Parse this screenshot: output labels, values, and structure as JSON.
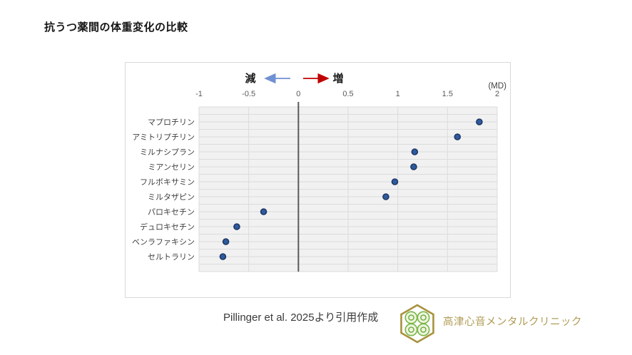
{
  "page": {
    "title": "抗うつ薬間の体重変化の比較",
    "citation": "Pillinger et al. 2025より引用作成",
    "logo_text": "高津心音メンタルクリニック"
  },
  "chart_data": {
    "type": "scatter",
    "orientation": "horizontal-category-dot-plot",
    "title": "抗うつ薬間の体重変化の比較",
    "unit_label": "(MD)",
    "decrease_label": "減",
    "increase_label": "増",
    "categories": [
      "マプロチリン",
      "アミトリプチリン",
      "ミルナシプラン",
      "ミアンセリン",
      "フルボキサミン",
      "ミルタザピン",
      "パロキセチン",
      "デュロキセチン",
      "ベンラファキシン",
      "セルトラリン"
    ],
    "values": [
      1.82,
      1.6,
      1.17,
      1.16,
      0.97,
      0.88,
      -0.35,
      -0.62,
      -0.73,
      -0.76
    ],
    "xlim": [
      -1,
      2
    ],
    "xticks": [
      -1,
      -0.5,
      0,
      0.5,
      1,
      1.5,
      2
    ],
    "xtick_labels": [
      "-1",
      "-0.5",
      "0",
      "0.5",
      "1",
      "1.5",
      "2"
    ],
    "grid": true,
    "legend": "none",
    "colors": {
      "plot_bg": "#f1f1f1",
      "gridline": "#dcdcdc",
      "zero_line": "#595959",
      "dot_fill": "#2e5b9f",
      "dot_stroke": "#1f3864",
      "decrease_arrow": "#7091d2",
      "increase_arrow": "#c00000",
      "tick_label": "#595959",
      "category_label": "#404040",
      "annotation_text": "#1a1a1a",
      "md_label": "#404040"
    }
  }
}
